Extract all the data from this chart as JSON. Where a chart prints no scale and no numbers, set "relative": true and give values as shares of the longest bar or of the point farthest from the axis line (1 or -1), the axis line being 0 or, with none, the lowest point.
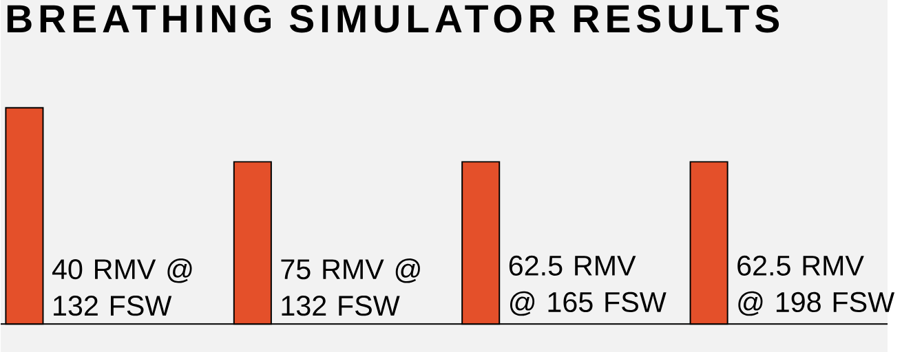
{
  "chart_data": {
    "type": "bar",
    "title": "BREATHING SIMULATOR RESULTS",
    "categories": [
      "40 RMV @ 132 FSW",
      "75 RMV @ 132 FSW",
      "62.5 RMV @ 165 FSW",
      "62.5 RMV @ 198 FSW"
    ],
    "values": [
      1,
      0.75,
      0.75,
      0.75
    ],
    "color": "#e4502a",
    "relative": true
  }
}
